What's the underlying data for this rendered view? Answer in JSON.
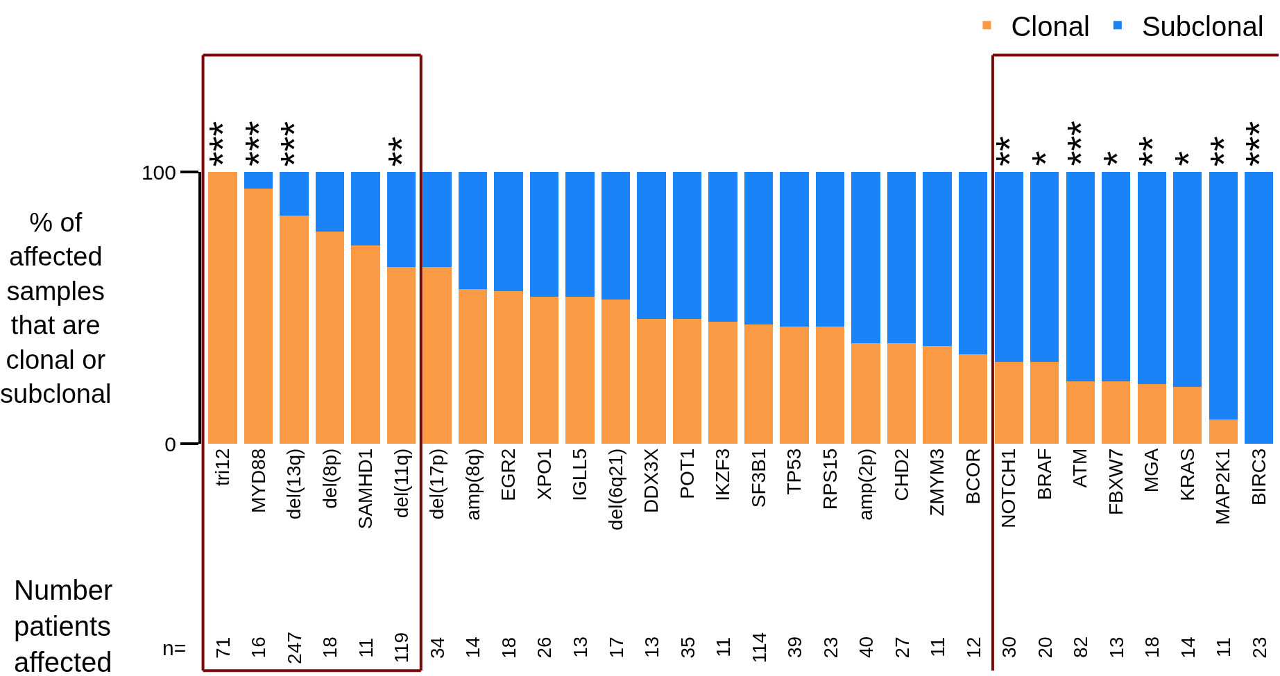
{
  "chart_data": {
    "type": "bar",
    "stacked": true,
    "ylabel": "% of affected samples that are clonal or subclonal",
    "categories": [
      "tri12",
      "MYD88",
      "del(13q)",
      "del(8p)",
      "SAMHD1",
      "del(11q)",
      "del(17p)",
      "amp(8q)",
      "EGR2",
      "XPO1",
      "IGLL5",
      "del(6q21)",
      "DDX3X",
      "POT1",
      "IKZF3",
      "SF3B1",
      "TP53",
      "RPS15",
      "amp(2p)",
      "CHD2",
      "ZMYM3",
      "BCOR",
      "NOTCH1",
      "BRAF",
      "ATM",
      "FBXW7",
      "MGA",
      "KRAS",
      "MAP2K1",
      "BIRC3"
    ],
    "series": [
      {
        "name": "Clonal",
        "color": "#fb9a45",
        "values": [
          100,
          94,
          84,
          78,
          73,
          65,
          65,
          57,
          56,
          54,
          54,
          53,
          46,
          46,
          45,
          44,
          43,
          43,
          37,
          37,
          36,
          33,
          30,
          30,
          23,
          23,
          22,
          21,
          9,
          0
        ]
      },
      {
        "name": "Subclonal",
        "color": "#1a83f7",
        "values": [
          0,
          6,
          16,
          22,
          27,
          35,
          35,
          43,
          44,
          46,
          46,
          47,
          54,
          54,
          55,
          56,
          57,
          57,
          63,
          63,
          64,
          67,
          70,
          70,
          77,
          77,
          78,
          79,
          91,
          100
        ]
      }
    ],
    "ylim": [
      0,
      100
    ],
    "yticks": [
      0,
      100
    ],
    "legend": "top right",
    "annotations": [
      {
        "text": "***",
        "x": "tri12",
        "y": 100
      },
      {
        "text": "***",
        "x": "MYD88",
        "y": 100
      },
      {
        "text": "***",
        "x": "del(13q)",
        "y": 100
      },
      {
        "text": "**",
        "x": "del(11q)",
        "y": 100
      },
      {
        "text": "**",
        "x": "NOTCH1",
        "y": 100
      },
      {
        "text": "*",
        "x": "BRAF",
        "y": 100
      },
      {
        "text": "***",
        "x": "ATM",
        "y": 100
      },
      {
        "text": "*",
        "x": "FBXW7",
        "y": 100
      },
      {
        "text": "**",
        "x": "MGA",
        "y": 100
      },
      {
        "text": "*",
        "x": "KRAS",
        "y": 100
      },
      {
        "text": "**",
        "x": "MAP2K1",
        "y": 100
      },
      {
        "text": "***",
        "x": "BIRC3",
        "y": 100
      },
      "Number patients affected",
      "n=",
      "71",
      "16",
      "247",
      "18",
      "11",
      "119",
      "34",
      "14",
      "18",
      "26",
      "13",
      "17",
      "13",
      "35",
      "11",
      "114",
      "39",
      "23",
      "40",
      "27",
      "11",
      "12",
      "30",
      "20",
      "82",
      "13",
      "18",
      "14",
      "11",
      "23"
    ]
  }
}
